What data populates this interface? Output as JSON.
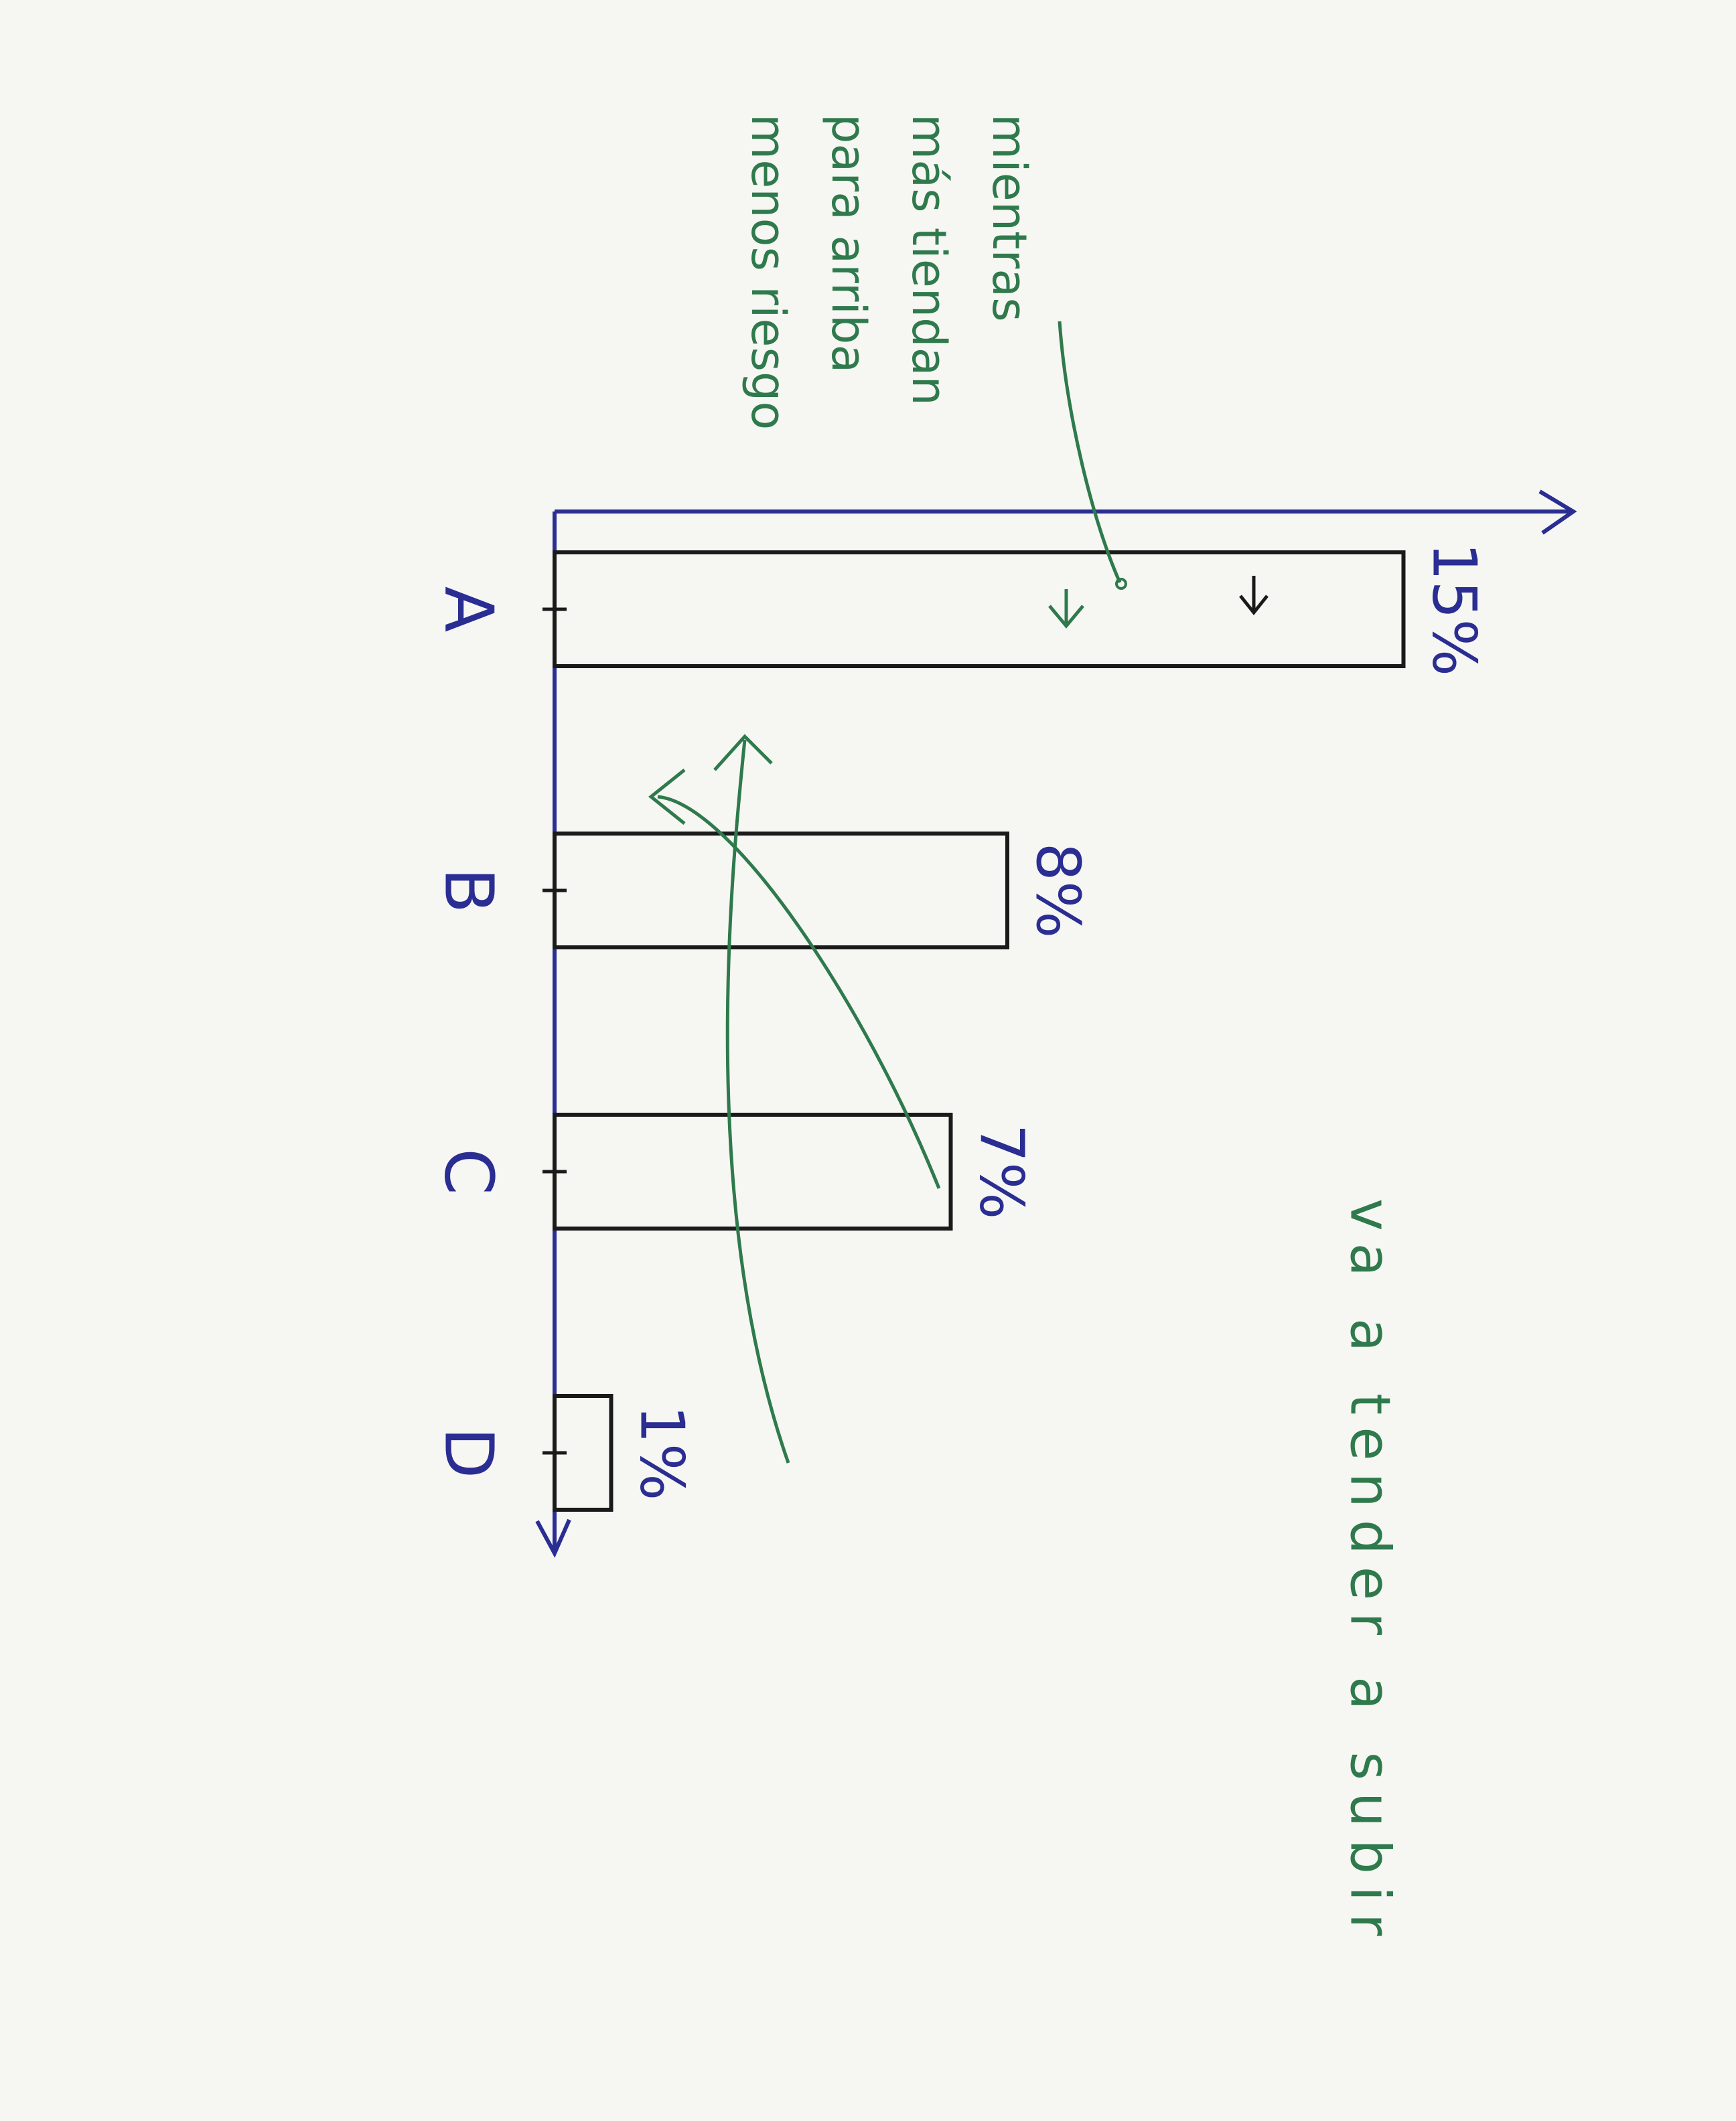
{
  "chart_data": {
    "type": "bar",
    "categories": [
      "A",
      "B",
      "C",
      "D"
    ],
    "values": [
      15,
      8,
      7,
      1
    ],
    "value_labels": [
      "15%",
      "8%",
      "7%",
      "1%"
    ],
    "ylim": [
      0,
      18
    ],
    "color": "#1a1a1a",
    "axis_color": "#2a2d92",
    "annotation_color": "#2f7a4c",
    "annotations": {
      "trend": "va a tender a subir",
      "note": [
        "mientras",
        "más tiendan",
        "para arriba",
        "menos riesgo"
      ]
    }
  }
}
